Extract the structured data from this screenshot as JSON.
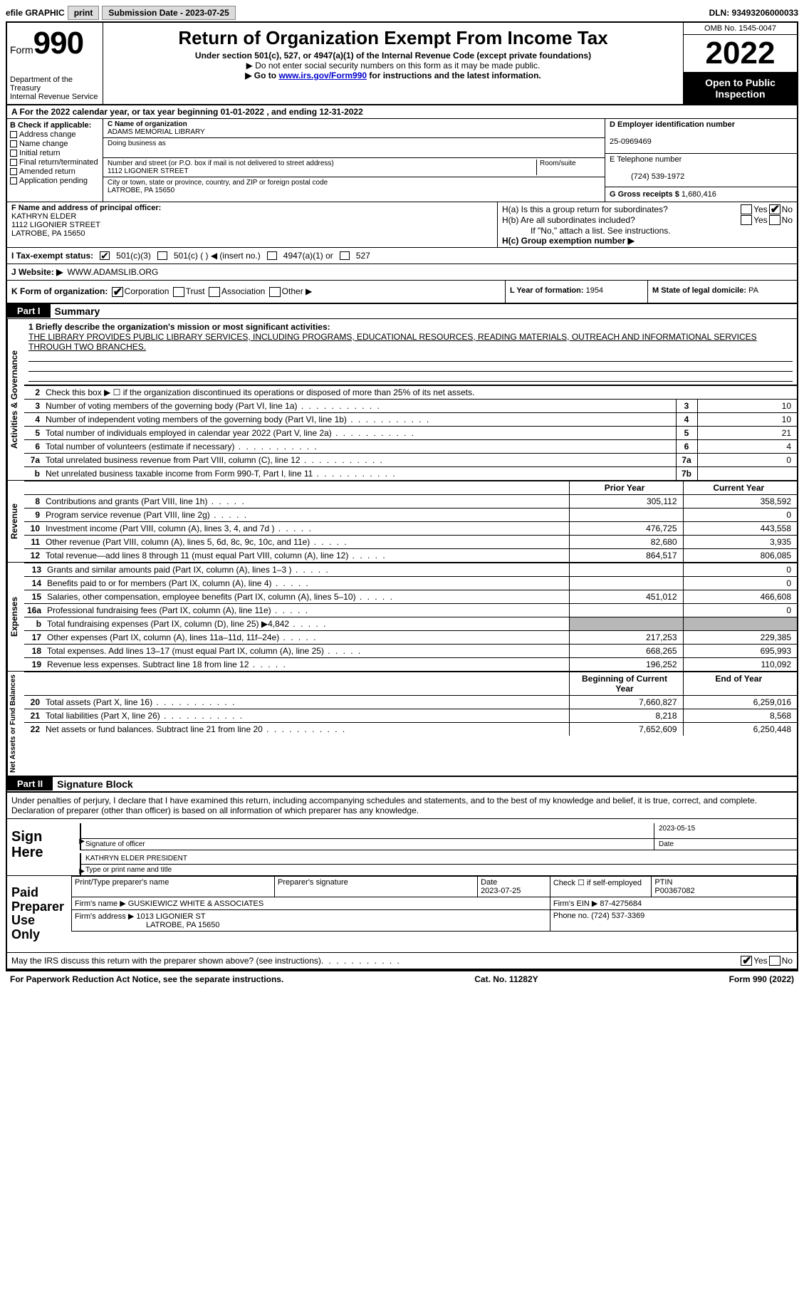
{
  "colors": {
    "black": "#000000",
    "white": "#ffffff",
    "shade": "#b8b8b8",
    "button_bg": "#dcdcdc",
    "link": "#0000cc"
  },
  "topbar": {
    "efile_label": "efile GRAPHIC",
    "print_btn": "print",
    "submission_label": "Submission Date - 2023-07-25",
    "dln": "DLN: 93493206000033"
  },
  "header": {
    "form_prefix": "Form",
    "form_number": "990",
    "dept": "Department of the Treasury",
    "irs": "Internal Revenue Service",
    "title": "Return of Organization Exempt From Income Tax",
    "subtitle": "Under section 501(c), 527, or 4947(a)(1) of the Internal Revenue Code (except private foundations)",
    "note1": "▶ Do not enter social security numbers on this form as it may be made public.",
    "note2_pre": "▶ Go to ",
    "note2_link": "www.irs.gov/Form990",
    "note2_post": " for instructions and the latest information.",
    "omb": "OMB No. 1545-0047",
    "year": "2022",
    "open": "Open to Public Inspection"
  },
  "row_a": "A For the 2022 calendar year, or tax year beginning 01-01-2022     , and ending 12-31-2022",
  "box_b": {
    "title": "B Check if applicable:",
    "opts": [
      "Address change",
      "Name change",
      "Initial return",
      "Final return/terminated",
      "Amended return",
      "Application pending"
    ]
  },
  "box_c": {
    "name_label": "C Name of organization",
    "name": "ADAMS MEMORIAL LIBRARY",
    "dba_label": "Doing business as",
    "street_label": "Number and street (or P.O. box if mail is not delivered to street address)",
    "suite_label": "Room/suite",
    "street": "1112 LIGONIER STREET",
    "city_label": "City or town, state or province, country, and ZIP or foreign postal code",
    "city": "LATROBE, PA  15650"
  },
  "box_d": {
    "label": "D Employer identification number",
    "value": "25-0969469"
  },
  "box_e": {
    "label": "E Telephone number",
    "value": "(724) 539-1972"
  },
  "box_g": {
    "label": "G Gross receipts $",
    "value": "1,680,416"
  },
  "box_f": {
    "label": "F Name and address of principal officer:",
    "name": "KATHRYN ELDER",
    "street": "1112 LIGONIER STREET",
    "city": "LATROBE, PA  15650"
  },
  "box_h": {
    "a": "H(a)  Is this a group return for subordinates?",
    "b": "H(b)  Are all subordinates included?",
    "b_note": "If \"No,\" attach a list. See instructions.",
    "c": "H(c)  Group exemption number ▶",
    "yes": "Yes",
    "no": "No"
  },
  "row_i": {
    "label": "I    Tax-exempt status:",
    "c3": "501(c)(3)",
    "c": "501(c) (   ) ◀ (insert no.)",
    "a1": "4947(a)(1) or",
    "s527": "527"
  },
  "row_j": {
    "label": "J   Website: ▶",
    "value": "WWW.ADAMSLIB.ORG"
  },
  "row_k": {
    "label": "K Form of organization:",
    "opts": [
      "Corporation",
      "Trust",
      "Association",
      "Other ▶"
    ]
  },
  "row_l": {
    "label": "L Year of formation:",
    "value": "1954"
  },
  "row_m": {
    "label": "M State of legal domicile:",
    "value": "PA"
  },
  "part1": {
    "hdr": "Part I",
    "title": "Summary"
  },
  "mission": {
    "q": "1   Briefly describe the organization's mission or most significant activities:",
    "text": "THE LIBRARY PROVIDES PUBLIC LIBRARY SERVICES, INCLUDING PROGRAMS, EDUCATIONAL RESOURCES, READING MATERIALS, OUTREACH AND INFORMATIONAL SERVICES THROUGH TWO BRANCHES."
  },
  "line2": "Check this box ▶ ☐  if the organization discontinued its operations or disposed of more than 25% of its net assets.",
  "tabs": {
    "ag": "Activities & Governance",
    "rev": "Revenue",
    "exp": "Expenses",
    "na": "Net Assets or Fund Balances"
  },
  "lines_ag": [
    {
      "n": "3",
      "d": "Number of voting members of the governing body (Part VI, line 1a)",
      "box": "3",
      "v": "10"
    },
    {
      "n": "4",
      "d": "Number of independent voting members of the governing body (Part VI, line 1b)",
      "box": "4",
      "v": "10"
    },
    {
      "n": "5",
      "d": "Total number of individuals employed in calendar year 2022 (Part V, line 2a)",
      "box": "5",
      "v": "21"
    },
    {
      "n": "6",
      "d": "Total number of volunteers (estimate if necessary)",
      "box": "6",
      "v": "4"
    },
    {
      "n": "7a",
      "d": "Total unrelated business revenue from Part VIII, column (C), line 12",
      "box": "7a",
      "v": "0"
    },
    {
      "n": "b",
      "d": "Net unrelated business taxable income from Form 990-T, Part I, line 11",
      "box": "7b",
      "v": ""
    }
  ],
  "col_hdrs": {
    "py": "Prior Year",
    "cy": "Current Year",
    "boy": "Beginning of Current Year",
    "eoy": "End of Year"
  },
  "lines_rev": [
    {
      "n": "8",
      "d": "Contributions and grants (Part VIII, line 1h)",
      "py": "305,112",
      "cy": "358,592"
    },
    {
      "n": "9",
      "d": "Program service revenue (Part VIII, line 2g)",
      "py": "",
      "cy": "0"
    },
    {
      "n": "10",
      "d": "Investment income (Part VIII, column (A), lines 3, 4, and 7d )",
      "py": "476,725",
      "cy": "443,558"
    },
    {
      "n": "11",
      "d": "Other revenue (Part VIII, column (A), lines 5, 6d, 8c, 9c, 10c, and 11e)",
      "py": "82,680",
      "cy": "3,935"
    },
    {
      "n": "12",
      "d": "Total revenue—add lines 8 through 11 (must equal Part VIII, column (A), line 12)",
      "py": "864,517",
      "cy": "806,085"
    }
  ],
  "lines_exp": [
    {
      "n": "13",
      "d": "Grants and similar amounts paid (Part IX, column (A), lines 1–3 )",
      "py": "",
      "cy": "0"
    },
    {
      "n": "14",
      "d": "Benefits paid to or for members (Part IX, column (A), line 4)",
      "py": "",
      "cy": "0"
    },
    {
      "n": "15",
      "d": "Salaries, other compensation, employee benefits (Part IX, column (A), lines 5–10)",
      "py": "451,012",
      "cy": "466,608"
    },
    {
      "n": "16a",
      "d": "Professional fundraising fees (Part IX, column (A), line 11e)",
      "py": "",
      "cy": "0"
    },
    {
      "n": "b",
      "d": "Total fundraising expenses (Part IX, column (D), line 25) ▶4,842",
      "py": "SHADE",
      "cy": "SHADE"
    },
    {
      "n": "17",
      "d": "Other expenses (Part IX, column (A), lines 11a–11d, 11f–24e)",
      "py": "217,253",
      "cy": "229,385"
    },
    {
      "n": "18",
      "d": "Total expenses. Add lines 13–17 (must equal Part IX, column (A), line 25)",
      "py": "668,265",
      "cy": "695,993"
    },
    {
      "n": "19",
      "d": "Revenue less expenses. Subtract line 18 from line 12",
      "py": "196,252",
      "cy": "110,092"
    }
  ],
  "lines_na": [
    {
      "n": "20",
      "d": "Total assets (Part X, line 16)",
      "py": "7,660,827",
      "cy": "6,259,016"
    },
    {
      "n": "21",
      "d": "Total liabilities (Part X, line 26)",
      "py": "8,218",
      "cy": "8,568"
    },
    {
      "n": "22",
      "d": "Net assets or fund balances. Subtract line 21 from line 20",
      "py": "7,652,609",
      "cy": "6,250,448"
    }
  ],
  "part2": {
    "hdr": "Part II",
    "title": "Signature Block"
  },
  "penalties": "Under penalties of perjury, I declare that I have examined this return, including accompanying schedules and statements, and to the best of my knowledge and belief, it is true, correct, and complete. Declaration of preparer (other than officer) is based on all information of which preparer has any knowledge.",
  "sign": {
    "here": "Sign Here",
    "sig_label": "Signature of officer",
    "date": "2023-05-15",
    "date_label": "Date",
    "name": "KATHRYN ELDER  PRESIDENT",
    "name_label": "Type or print name and title"
  },
  "prep": {
    "here": "Paid Preparer Use Only",
    "h1": "Print/Type preparer's name",
    "h2": "Preparer's signature",
    "h3": "Date",
    "h3v": "2023-07-25",
    "h4": "Check ☐ if self-employed",
    "h5": "PTIN",
    "h5v": "P00367082",
    "firm_name_l": "Firm's name    ▶",
    "firm_name": "GUSKIEWICZ WHITE & ASSOCIATES",
    "firm_ein_l": "Firm's EIN ▶",
    "firm_ein": "87-4275684",
    "firm_addr_l": "Firm's address ▶",
    "firm_addr": "1013 LIGONIER ST",
    "firm_city": "LATROBE, PA  15650",
    "phone_l": "Phone no.",
    "phone": "(724) 537-3369"
  },
  "discuss": "May the IRS discuss this return with the preparer shown above? (see instructions)",
  "footer": {
    "l": "For Paperwork Reduction Act Notice, see the separate instructions.",
    "c": "Cat. No. 11282Y",
    "r": "Form 990 (2022)"
  }
}
